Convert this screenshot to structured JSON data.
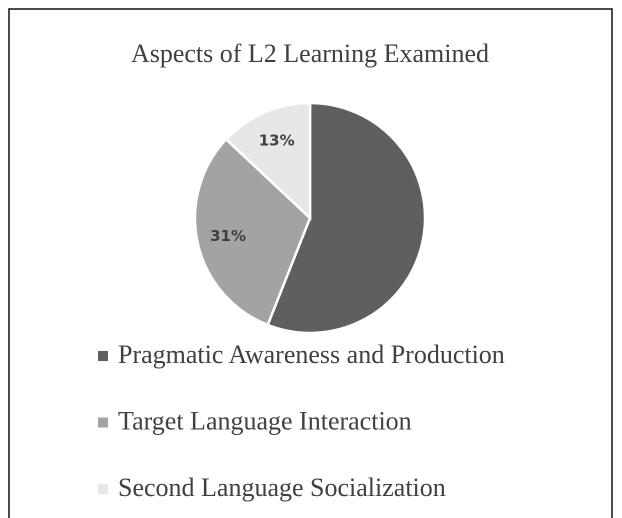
{
  "chart_data": {
    "type": "pie",
    "title": "Aspects of L2 Learning Examined",
    "categories": [
      "Pragmatic Awareness and Production",
      "Target Language Interaction",
      "Second Language Socialization"
    ],
    "values": [
      56,
      31,
      13
    ],
    "value_labels": [
      null,
      "31%",
      "13%"
    ],
    "colors": [
      "#5f5f5f",
      "#a3a3a3",
      "#e7e7e7"
    ],
    "legend": "bottom"
  }
}
